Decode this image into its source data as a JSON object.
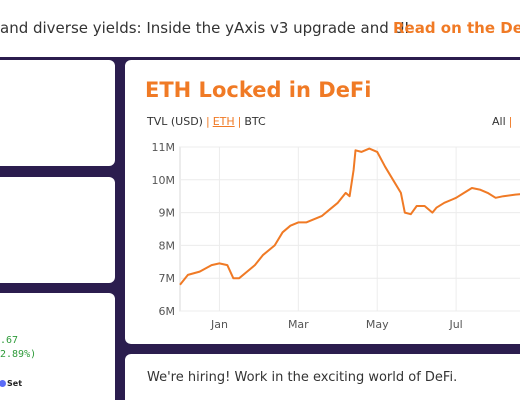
{
  "banner": {
    "headline": "and diverse yields: Inside the yAxis v3 upgrade and UI",
    "link": "Read on the DeFi"
  },
  "price_card": {
    "price": ".67",
    "change": "2.89%)",
    "brand": "Set"
  },
  "chart_card": {
    "title": "ETH Locked in DeFi",
    "units": {
      "tvl_usd": "TVL (USD)",
      "eth": "ETH",
      "btc": "BTC",
      "separator": "|"
    },
    "range": {
      "all": "All",
      "separator": "|"
    }
  },
  "hiring": {
    "text": "We're hiring! Work in the exciting world of DeFi."
  },
  "colors": {
    "accent": "#f07a25",
    "background": "#2b1d4e",
    "positive": "#2e9b3a"
  },
  "chart_data": {
    "type": "line",
    "title": "ETH Locked in DeFi",
    "xlabel": "",
    "ylabel": "",
    "x_ticks": [
      "Jan",
      "Mar",
      "May",
      "Jul"
    ],
    "y_ticks": [
      "6M",
      "7M",
      "8M",
      "9M",
      "10M",
      "11M"
    ],
    "ylim": [
      6,
      11
    ],
    "xlim": [
      0,
      9
    ],
    "grid": true,
    "series": [
      {
        "unit": "M ETH",
        "points": [
          [
            0.0,
            6.8
          ],
          [
            0.2,
            7.1
          ],
          [
            0.5,
            7.2
          ],
          [
            0.8,
            7.4
          ],
          [
            1.0,
            7.45
          ],
          [
            1.2,
            7.4
          ],
          [
            1.35,
            7.0
          ],
          [
            1.5,
            7.0
          ],
          [
            1.7,
            7.2
          ],
          [
            1.9,
            7.4
          ],
          [
            2.1,
            7.7
          ],
          [
            2.4,
            8.0
          ],
          [
            2.6,
            8.4
          ],
          [
            2.8,
            8.6
          ],
          [
            3.0,
            8.7
          ],
          [
            3.2,
            8.7
          ],
          [
            3.4,
            8.8
          ],
          [
            3.6,
            8.9
          ],
          [
            3.8,
            9.1
          ],
          [
            4.0,
            9.3
          ],
          [
            4.2,
            9.6
          ],
          [
            4.3,
            9.5
          ],
          [
            4.4,
            10.3
          ],
          [
            4.45,
            10.9
          ],
          [
            4.6,
            10.85
          ],
          [
            4.8,
            10.95
          ],
          [
            5.0,
            10.85
          ],
          [
            5.2,
            10.4
          ],
          [
            5.4,
            10.0
          ],
          [
            5.6,
            9.6
          ],
          [
            5.7,
            9.0
          ],
          [
            5.85,
            8.95
          ],
          [
            6.0,
            9.2
          ],
          [
            6.2,
            9.2
          ],
          [
            6.4,
            9.0
          ],
          [
            6.5,
            9.15
          ],
          [
            6.7,
            9.3
          ],
          [
            6.9,
            9.4
          ],
          [
            7.0,
            9.45
          ],
          [
            7.2,
            9.6
          ],
          [
            7.4,
            9.75
          ],
          [
            7.6,
            9.7
          ],
          [
            7.8,
            9.6
          ],
          [
            8.0,
            9.45
          ],
          [
            8.2,
            9.5
          ],
          [
            8.5,
            9.55
          ],
          [
            9.0,
            9.6
          ]
        ]
      }
    ]
  }
}
